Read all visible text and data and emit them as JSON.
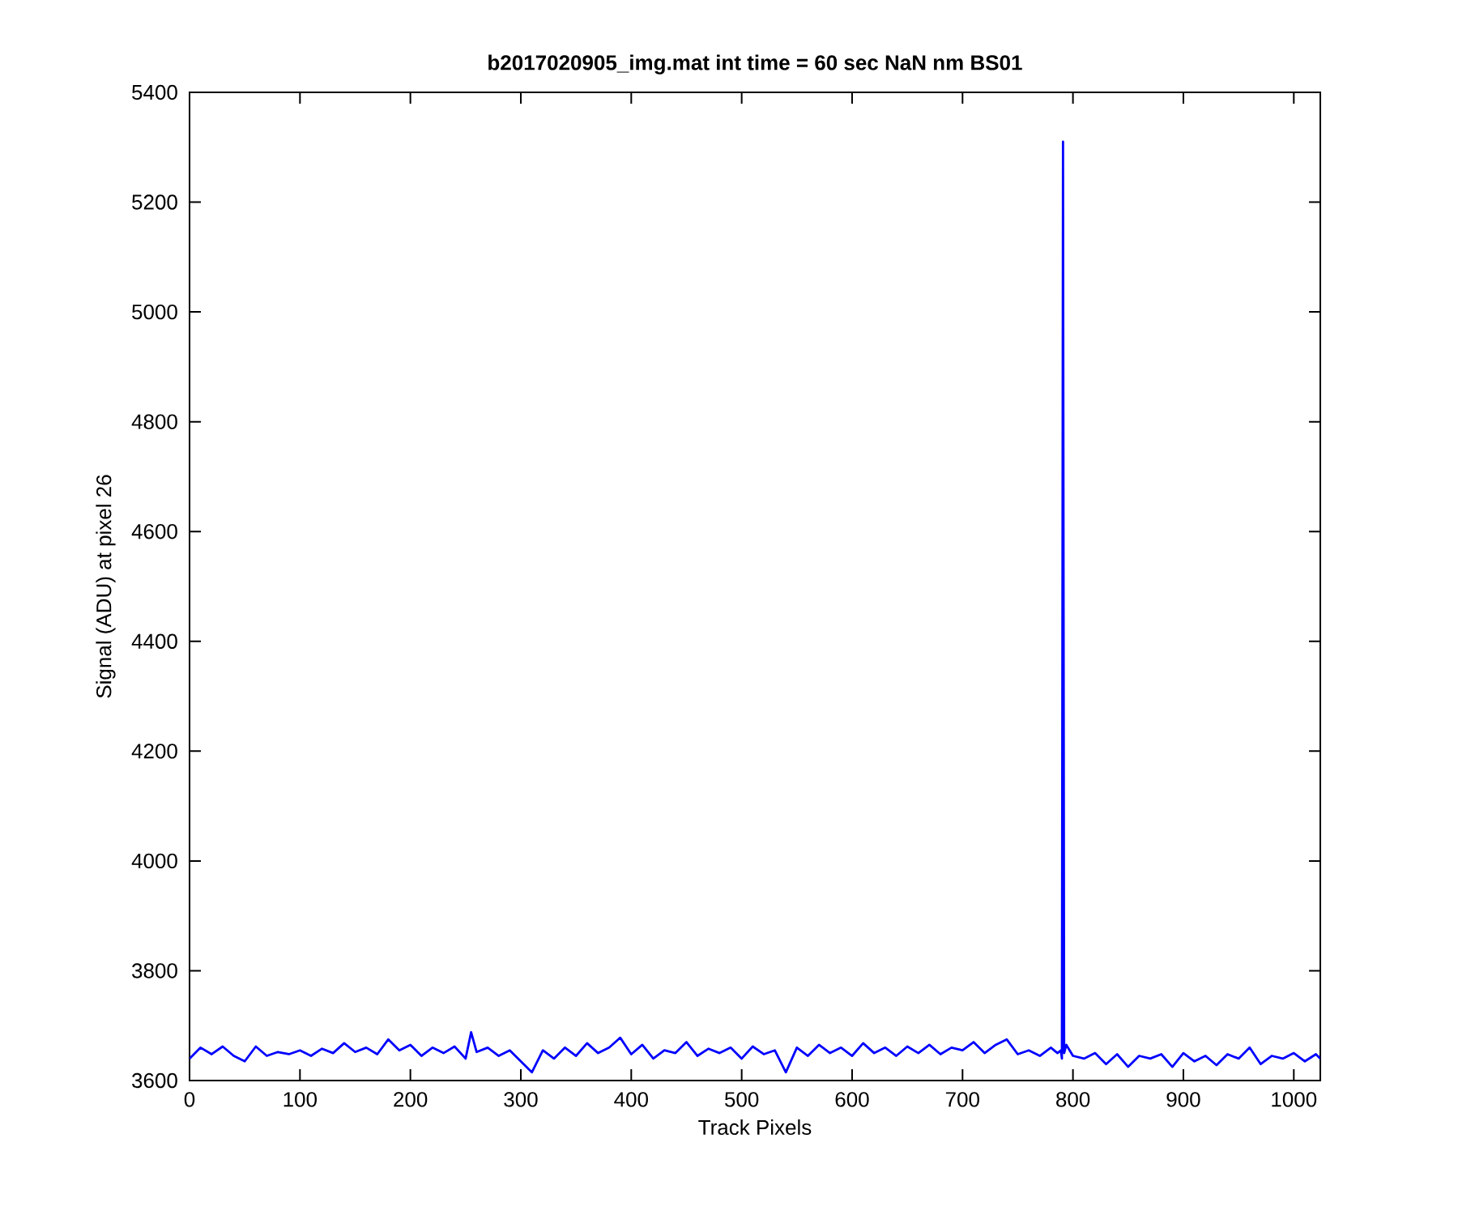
{
  "chart_data": {
    "type": "line",
    "title": "b2017020905_img.mat int time = 60 sec  NaN nm BS01",
    "xlabel": "Track Pixels",
    "ylabel": "Signal (ADU) at pixel 26",
    "x": [
      0,
      10,
      20,
      30,
      40,
      50,
      60,
      70,
      80,
      90,
      100,
      110,
      120,
      130,
      140,
      150,
      160,
      170,
      180,
      190,
      200,
      210,
      220,
      230,
      240,
      250,
      255,
      260,
      270,
      280,
      290,
      300,
      310,
      320,
      330,
      340,
      350,
      360,
      370,
      380,
      390,
      400,
      410,
      420,
      430,
      440,
      450,
      460,
      470,
      480,
      490,
      500,
      510,
      520,
      530,
      540,
      550,
      560,
      570,
      580,
      590,
      600,
      610,
      620,
      630,
      640,
      650,
      660,
      670,
      680,
      690,
      700,
      710,
      720,
      730,
      740,
      750,
      760,
      770,
      780,
      786,
      789,
      790,
      791,
      792,
      794,
      800,
      810,
      820,
      830,
      840,
      850,
      860,
      870,
      880,
      890,
      900,
      910,
      920,
      930,
      940,
      950,
      960,
      970,
      980,
      990,
      1000,
      1010,
      1020,
      1024
    ],
    "series": [
      {
        "color": "#0000ff",
        "values": [
          3640,
          3660,
          3648,
          3662,
          3645,
          3635,
          3662,
          3645,
          3652,
          3648,
          3655,
          3645,
          3658,
          3650,
          3668,
          3652,
          3660,
          3648,
          3675,
          3655,
          3665,
          3645,
          3660,
          3650,
          3662,
          3640,
          3688,
          3652,
          3660,
          3645,
          3655,
          3635,
          3615,
          3655,
          3640,
          3660,
          3645,
          3668,
          3650,
          3660,
          3678,
          3648,
          3665,
          3640,
          3655,
          3650,
          3670,
          3645,
          3658,
          3650,
          3660,
          3640,
          3662,
          3648,
          3655,
          3615,
          3660,
          3645,
          3665,
          3650,
          3660,
          3645,
          3668,
          3650,
          3660,
          3645,
          3662,
          3650,
          3665,
          3648,
          3660,
          3655,
          3670,
          3650,
          3665,
          3675,
          3648,
          3655,
          3645,
          3660,
          3650,
          3655,
          3640,
          5310,
          3650,
          3665,
          3645,
          3640,
          3650,
          3630,
          3648,
          3625,
          3645,
          3640,
          3648,
          3625,
          3650,
          3635,
          3645,
          3628,
          3648,
          3640,
          3660,
          3630,
          3645,
          3640,
          3650,
          3635,
          3648,
          3640
        ]
      }
    ],
    "xlim": [
      0,
      1024
    ],
    "ylim": [
      3600,
      5400
    ],
    "xticks": [
      0,
      100,
      200,
      300,
      400,
      500,
      600,
      700,
      800,
      900,
      1000
    ],
    "yticks": [
      3600,
      3800,
      4000,
      4200,
      4400,
      4600,
      4800,
      5000,
      5200,
      5400
    ]
  }
}
